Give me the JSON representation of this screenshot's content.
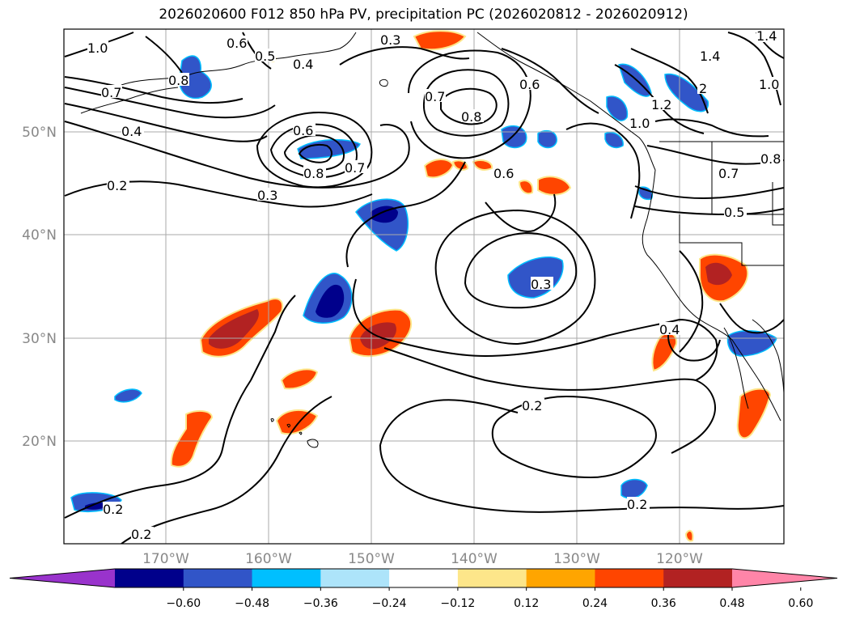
{
  "title": "2026020600 F012 850 hPa PV, precipitation PC (2026020812 - 2026020912)",
  "lat_ticks": [
    "50°N",
    "40°N",
    "30°N",
    "20°N"
  ],
  "lon_ticks": [
    "170°W",
    "160°W",
    "150°W",
    "140°W",
    "130°W",
    "120°W"
  ],
  "colorbar": {
    "colors": [
      "#9933cc",
      "#00008b",
      "#3155c8",
      "#00bfff",
      "#ade4fa",
      "#ffffff",
      "#fde68a",
      "#ffa500",
      "#ff4500",
      "#b22222",
      "#ff85a8"
    ],
    "labels": [
      "−0.60",
      "−0.48",
      "−0.36",
      "−0.24",
      "−0.12",
      "0.12",
      "0.24",
      "0.36",
      "0.48",
      "0.60"
    ]
  },
  "contour_labels": [
    "1.0",
    "0.6",
    "0.5",
    "0.4",
    "0.3",
    "1.4",
    "0.8",
    "1.4",
    "0.7",
    "0.6",
    "0.7",
    "1.0",
    "1.2",
    "2",
    "0.8",
    "1.0",
    "0.4",
    "0.6",
    "0.8",
    "0.7",
    "0.6",
    "0.8",
    "0.2",
    "0.3",
    "0.7",
    "0.5",
    "0.3",
    "0.4",
    "0.2",
    "0.2",
    "0.2",
    "0.2"
  ]
}
